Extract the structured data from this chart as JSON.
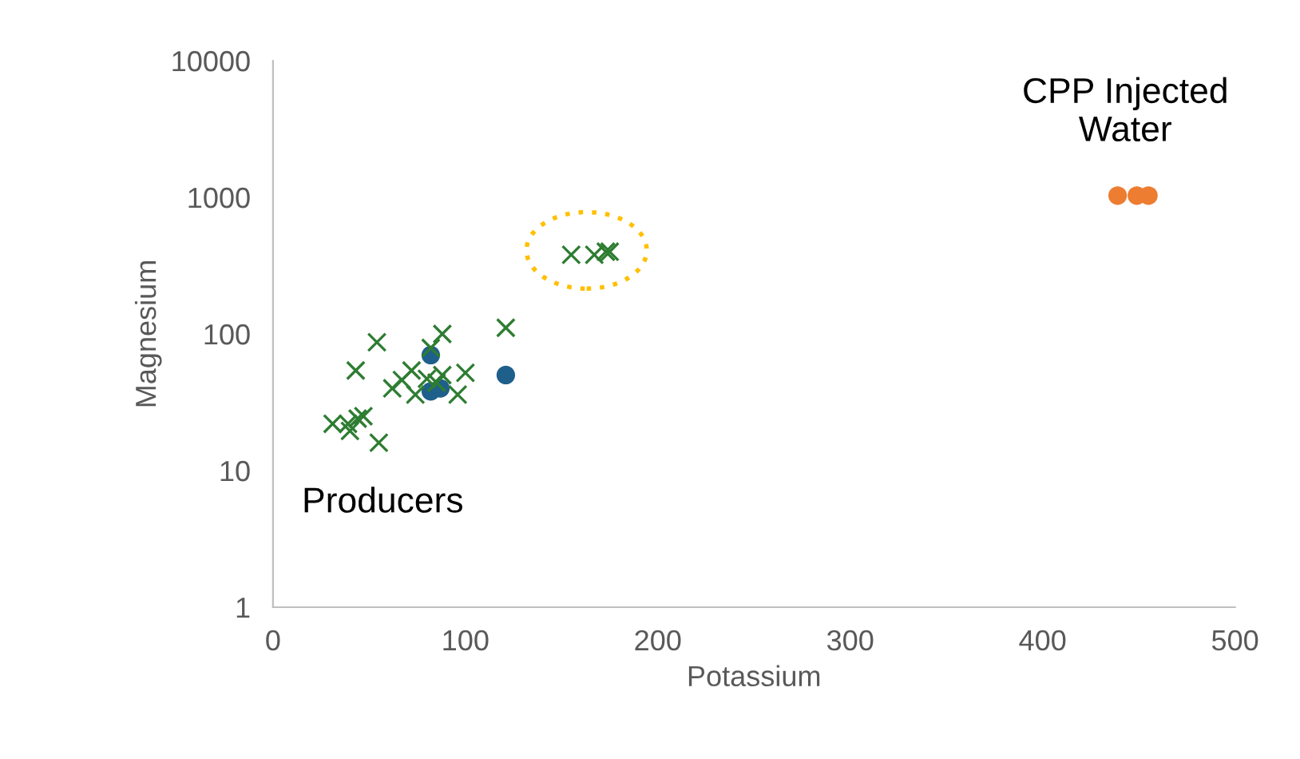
{
  "chart_data": {
    "type": "scatter",
    "xlabel": "Potassium",
    "ylabel": "Magnesium",
    "log": "y",
    "xlim": [
      0,
      500
    ],
    "xticks": [
      0,
      100,
      200,
      300,
      400,
      500
    ],
    "ylim": [
      1,
      10000
    ],
    "yticks": [
      1,
      10,
      100,
      1000,
      10000
    ],
    "grid": false,
    "legend": false,
    "series": [
      {
        "color": "#2e7d32",
        "marker": "cross",
        "x": [
          88,
          54,
          43,
          121,
          82,
          72,
          67,
          62,
          88,
          100,
          96,
          74,
          31,
          39,
          44,
          47,
          40,
          55,
          80,
          85,
          155,
          167,
          173,
          175
        ],
        "values": [
          100,
          87,
          54,
          111,
          79,
          54,
          46,
          40,
          50,
          52,
          36,
          36,
          22,
          22,
          24,
          25,
          19.5,
          16,
          47,
          44,
          380,
          380,
          400,
          400
        ]
      },
      {
        "color": "#1f5f8b",
        "marker": "circle",
        "x": [
          82,
          82,
          87,
          121
        ],
        "values": [
          70,
          38,
          40,
          50
        ]
      },
      {
        "color": "#ed7d31",
        "marker": "circle",
        "x": [
          439,
          449,
          455
        ],
        "values": [
          1030,
          1030,
          1030
        ]
      }
    ],
    "annotations": [
      "Producers",
      "CPP Injected\nWater"
    ]
  }
}
